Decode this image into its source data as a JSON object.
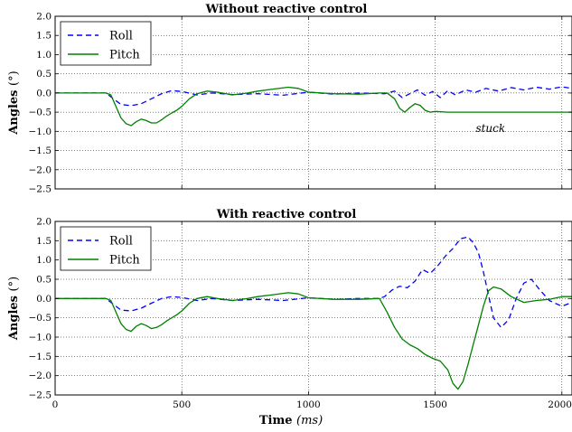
{
  "chart_data": [
    {
      "type": "line",
      "title": "Without reactive control",
      "xlabel": "",
      "ylabel": "Angles",
      "ylabel_unit": "(°)",
      "xlim": [
        0,
        2040
      ],
      "ylim": [
        -2.5,
        2.0
      ],
      "x_ticks": [
        0,
        500,
        1000,
        1500,
        2000
      ],
      "x_tick_labels": [
        "",
        "",
        "",
        "",
        ""
      ],
      "y_ticks": [
        -2.5,
        -2.0,
        -1.5,
        -1.0,
        -0.5,
        0.0,
        0.5,
        1.0,
        1.5,
        2.0
      ],
      "y_tick_labels": [
        "−2.5",
        "−2.0",
        "−1.5",
        "−1.0",
        "−0.5",
        "0.0",
        "0.5",
        "1.0",
        "1.5",
        "2.0"
      ],
      "grid": true,
      "legend_position": "top-left",
      "annotations": [
        {
          "text": "stuck",
          "x": 1660,
          "y": -0.92
        }
      ],
      "series": [
        {
          "name": "Roll",
          "style": "dashed",
          "color": "#0000ff",
          "x": [
            0,
            200,
            230,
            260,
            300,
            340,
            380,
            420,
            460,
            500,
            560,
            620,
            700,
            800,
            900,
            1000,
            1100,
            1200,
            1300,
            1340,
            1370,
            1400,
            1430,
            1460,
            1490,
            1520,
            1550,
            1580,
            1620,
            1660,
            1700,
            1750,
            1800,
            1850,
            1900,
            1950,
            2000,
            2040
          ],
          "y": [
            0.0,
            0.0,
            -0.15,
            -0.3,
            -0.33,
            -0.28,
            -0.15,
            -0.02,
            0.06,
            0.04,
            -0.05,
            0.0,
            -0.04,
            -0.02,
            -0.06,
            0.02,
            -0.03,
            0.0,
            -0.02,
            0.05,
            -0.12,
            -0.02,
            0.08,
            -0.06,
            0.04,
            -0.12,
            0.06,
            -0.05,
            0.08,
            0.02,
            0.12,
            0.05,
            0.14,
            0.08,
            0.15,
            0.1,
            0.16,
            0.12
          ]
        },
        {
          "name": "Pitch",
          "style": "solid",
          "color": "#008000",
          "x": [
            0,
            200,
            220,
            240,
            260,
            280,
            300,
            320,
            340,
            360,
            380,
            400,
            420,
            440,
            460,
            480,
            500,
            530,
            560,
            600,
            640,
            700,
            760,
            800,
            860,
            920,
            960,
            1000,
            1100,
            1200,
            1280,
            1310,
            1340,
            1360,
            1380,
            1400,
            1420,
            1440,
            1460,
            1480,
            1500,
            1550,
            1600,
            1700,
            1800,
            1900,
            2040
          ],
          "y": [
            0.0,
            0.0,
            -0.05,
            -0.35,
            -0.65,
            -0.8,
            -0.85,
            -0.75,
            -0.68,
            -0.72,
            -0.78,
            -0.78,
            -0.7,
            -0.6,
            -0.52,
            -0.45,
            -0.35,
            -0.15,
            -0.02,
            0.05,
            0.02,
            -0.05,
            0.0,
            0.05,
            0.1,
            0.15,
            0.12,
            0.02,
            -0.02,
            -0.03,
            0.0,
            0.0,
            -0.15,
            -0.4,
            -0.5,
            -0.38,
            -0.28,
            -0.32,
            -0.45,
            -0.5,
            -0.48,
            -0.5,
            -0.5,
            -0.5,
            -0.5,
            -0.5,
            -0.5
          ]
        }
      ]
    },
    {
      "type": "line",
      "title": "With reactive control",
      "xlabel": "Time",
      "xlabel_unit": "(ms)",
      "ylabel": "Angles",
      "ylabel_unit": "(°)",
      "xlim": [
        0,
        2040
      ],
      "ylim": [
        -2.5,
        2.0
      ],
      "x_ticks": [
        0,
        500,
        1000,
        1500,
        2000
      ],
      "x_tick_labels": [
        "0",
        "500",
        "1000",
        "1500",
        "2000"
      ],
      "y_ticks": [
        -2.5,
        -2.0,
        -1.5,
        -1.0,
        -0.5,
        0.0,
        0.5,
        1.0,
        1.5,
        2.0
      ],
      "y_tick_labels": [
        "−2.5",
        "−2.0",
        "−1.5",
        "−1.0",
        "−0.5",
        "0.0",
        "0.5",
        "1.0",
        "1.5",
        "2.0"
      ],
      "grid": true,
      "legend_position": "top-left",
      "series": [
        {
          "name": "Roll",
          "style": "dashed",
          "color": "#0000ff",
          "x": [
            0,
            200,
            230,
            260,
            300,
            340,
            380,
            420,
            460,
            500,
            560,
            620,
            700,
            800,
            900,
            1000,
            1100,
            1200,
            1280,
            1300,
            1330,
            1360,
            1390,
            1420,
            1450,
            1480,
            1510,
            1540,
            1570,
            1600,
            1630,
            1650,
            1670,
            1690,
            1710,
            1730,
            1760,
            1790,
            1820,
            1850,
            1880,
            1910,
            1950,
            2000,
            2040
          ],
          "y": [
            0.0,
            0.0,
            -0.15,
            -0.3,
            -0.32,
            -0.25,
            -0.12,
            0.0,
            0.05,
            0.03,
            -0.05,
            0.0,
            -0.05,
            -0.02,
            -0.05,
            0.02,
            -0.02,
            0.0,
            0.0,
            0.05,
            0.22,
            0.32,
            0.28,
            0.45,
            0.75,
            0.65,
            0.85,
            1.1,
            1.3,
            1.55,
            1.6,
            1.45,
            1.2,
            0.7,
            0.1,
            -0.5,
            -0.75,
            -0.55,
            0.0,
            0.4,
            0.5,
            0.25,
            -0.05,
            -0.2,
            -0.1
          ]
        },
        {
          "name": "Pitch",
          "style": "solid",
          "color": "#008000",
          "x": [
            0,
            200,
            220,
            240,
            260,
            280,
            300,
            320,
            340,
            360,
            380,
            400,
            420,
            440,
            460,
            480,
            500,
            530,
            560,
            600,
            640,
            700,
            760,
            800,
            860,
            920,
            960,
            1000,
            1100,
            1200,
            1280,
            1310,
            1340,
            1370,
            1400,
            1430,
            1460,
            1490,
            1520,
            1550,
            1570,
            1590,
            1610,
            1630,
            1650,
            1670,
            1690,
            1710,
            1730,
            1760,
            1800,
            1850,
            1900,
            1950,
            2000,
            2040
          ],
          "y": [
            0.0,
            0.0,
            -0.05,
            -0.35,
            -0.65,
            -0.8,
            -0.85,
            -0.72,
            -0.65,
            -0.7,
            -0.78,
            -0.75,
            -0.68,
            -0.58,
            -0.5,
            -0.42,
            -0.32,
            -0.12,
            0.0,
            0.05,
            0.0,
            -0.05,
            0.0,
            0.05,
            0.1,
            0.15,
            0.12,
            0.02,
            -0.02,
            -0.02,
            0.0,
            -0.35,
            -0.75,
            -1.05,
            -1.2,
            -1.3,
            -1.45,
            -1.55,
            -1.62,
            -1.85,
            -2.2,
            -2.35,
            -2.15,
            -1.7,
            -1.2,
            -0.7,
            -0.2,
            0.2,
            0.3,
            0.25,
            0.05,
            -0.1,
            -0.05,
            -0.02,
            0.05,
            0.05
          ]
        }
      ]
    }
  ]
}
